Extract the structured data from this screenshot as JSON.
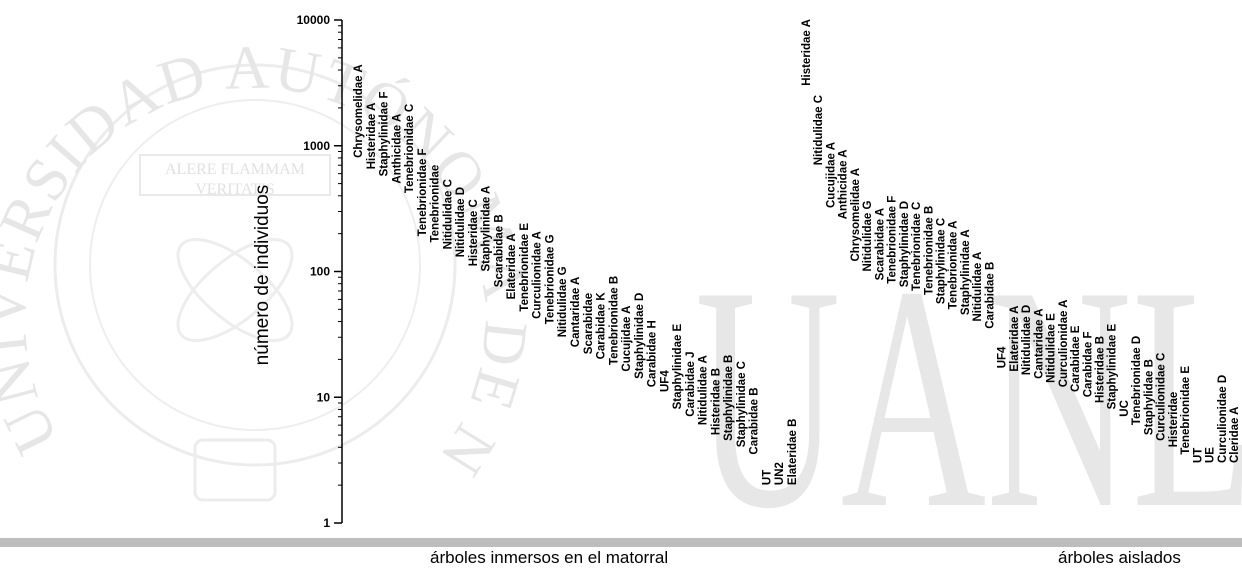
{
  "watermark": {
    "arc_text": "UNIVERSIDAD AUTÓNOMA DE NUEVO LEÓN",
    "motto_line1": "ALERE FLAMMAM",
    "motto_line2": "VERITATIS",
    "logo_text": "UANL",
    "color": "#e6e6e6"
  },
  "chart_data": {
    "type": "scatter",
    "scale": "log",
    "ylabel": "número de individuos",
    "ylim": [
      1,
      10000
    ],
    "yticks": [
      "1",
      "10",
      "100",
      "1000",
      "10000"
    ],
    "groups": [
      {
        "label": "árboles inmersos en el matorral",
        "points": [
          {
            "name": "Chrysomelidae A",
            "value": 800
          },
          {
            "name": "Histeridae A",
            "value": 650
          },
          {
            "name": "Staphylinidae F",
            "value": 570
          },
          {
            "name": "Anthicidae A",
            "value": 500
          },
          {
            "name": "Tenebrionidae C",
            "value": 420
          },
          {
            "name": "Tenebrionidae F",
            "value": 190
          },
          {
            "name": "Tenebrionidae",
            "value": 170
          },
          {
            "name": "Nitidulidae C",
            "value": 150
          },
          {
            "name": "Nitidulidae D",
            "value": 130
          },
          {
            "name": "Histeridae C",
            "value": 110
          },
          {
            "name": "Staphylinidae A",
            "value": 100
          },
          {
            "name": "Scarabidae B",
            "value": 75
          },
          {
            "name": "Elateridae A",
            "value": 60
          },
          {
            "name": "Tenebrionidae E",
            "value": 48
          },
          {
            "name": "Curculionidae A",
            "value": 42
          },
          {
            "name": "Tenebrionidae G",
            "value": 38
          },
          {
            "name": "Nitidulidae G",
            "value": 30
          },
          {
            "name": "Cantaridae A",
            "value": 25
          },
          {
            "name": "Scarabidae",
            "value": 22
          },
          {
            "name": "Carabidae K",
            "value": 20
          },
          {
            "name": "Tenebrionidae B",
            "value": 18
          },
          {
            "name": "Cucujidae A",
            "value": 16
          },
          {
            "name": "Staphylinidae D",
            "value": 14
          },
          {
            "name": "Carabidae H",
            "value": 12
          },
          {
            "name": "UF4",
            "value": 11
          },
          {
            "name": "Staphylinidae E",
            "value": 8
          },
          {
            "name": "Carabidae J",
            "value": 7
          },
          {
            "name": "Nitidulidae A",
            "value": 6
          },
          {
            "name": "Histeridae B",
            "value": 5
          },
          {
            "name": "Staphylinidae B",
            "value": 4.5
          },
          {
            "name": "Staphylinidae C",
            "value": 4
          },
          {
            "name": "Carabidae B",
            "value": 3.5
          },
          {
            "name": "UT",
            "value": 2
          },
          {
            "name": "UN2",
            "value": 2
          },
          {
            "name": "Elateridae B",
            "value": 2
          }
        ]
      },
      {
        "label": "árboles aislados",
        "points": [
          {
            "name": "Histeridae A",
            "value": 3000
          },
          {
            "name": "Nitidulidae C",
            "value": 700
          },
          {
            "name": "Cucujidae A",
            "value": 320
          },
          {
            "name": "Anthicidae A",
            "value": 260
          },
          {
            "name": "Chrysomelidae A",
            "value": 120
          },
          {
            "name": "Nitidulidae G",
            "value": 100
          },
          {
            "name": "Scarabidae A",
            "value": 85
          },
          {
            "name": "Tenebrionidae F",
            "value": 80
          },
          {
            "name": "Staphylinidae D",
            "value": 75
          },
          {
            "name": "Tenebrionidae C",
            "value": 70
          },
          {
            "name": "Tenebrionidae B",
            "value": 65
          },
          {
            "name": "Staphylinidae C",
            "value": 55
          },
          {
            "name": "Tenebrionidae A",
            "value": 50
          },
          {
            "name": "Staphylinidae A",
            "value": 45
          },
          {
            "name": "Nitidulidae A",
            "value": 40
          },
          {
            "name": "Carabidae B",
            "value": 35
          },
          {
            "name": "UF4",
            "value": 17
          },
          {
            "name": "Elateridae A",
            "value": 16
          },
          {
            "name": "Nitidulidae D",
            "value": 15
          },
          {
            "name": "Cantaridae A",
            "value": 14
          },
          {
            "name": "Nitidulidae E",
            "value": 13
          },
          {
            "name": "Curculionidae A",
            "value": 12
          },
          {
            "name": "Carabidae E",
            "value": 11
          },
          {
            "name": "Carabidae F",
            "value": 10
          },
          {
            "name": "Histeridae B",
            "value": 9
          },
          {
            "name": "Staphylinidae E",
            "value": 8
          },
          {
            "name": "UC",
            "value": 7
          },
          {
            "name": "Tenebrionidae D",
            "value": 6
          },
          {
            "name": "Staphylidae B",
            "value": 5
          },
          {
            "name": "Curculionidae C",
            "value": 4.5
          },
          {
            "name": "Histeridae",
            "value": 4
          },
          {
            "name": "Tenebrionidae E",
            "value": 3.5
          },
          {
            "name": "UT",
            "value": 3
          },
          {
            "name": "UE",
            "value": 3
          },
          {
            "name": "Curculionidae D",
            "value": 3
          },
          {
            "name": "Cleridae A",
            "value": 3
          }
        ]
      }
    ]
  }
}
